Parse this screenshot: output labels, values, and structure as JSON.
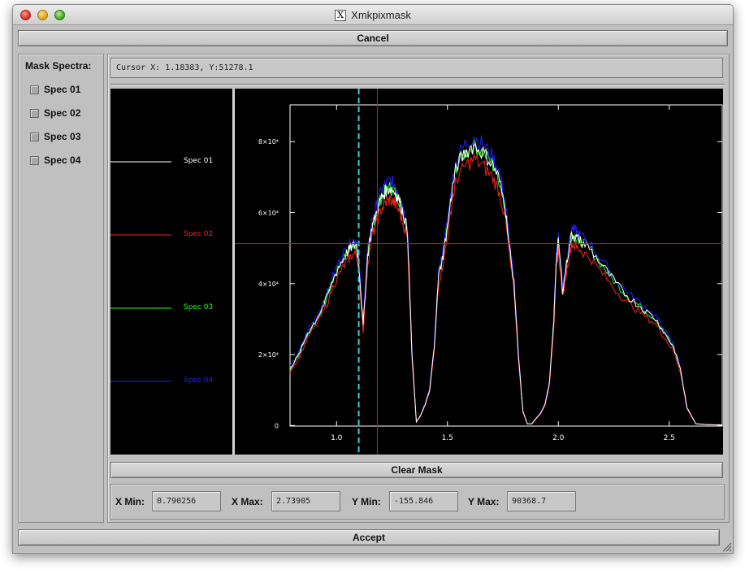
{
  "window": {
    "title": "Xmkpixmask"
  },
  "buttons": {
    "cancel": "Cancel",
    "clear_mask": "Clear Mask",
    "accept": "Accept"
  },
  "mask_panel": {
    "title": "Mask Spectra:",
    "items": [
      {
        "label": "Spec 01",
        "checked": false
      },
      {
        "label": "Spec 02",
        "checked": false
      },
      {
        "label": "Spec 03",
        "checked": false
      },
      {
        "label": "Spec 04",
        "checked": false
      }
    ]
  },
  "cursor": {
    "text": "Cursor X: 1.18383, Y:51278.1"
  },
  "limits": {
    "xmin_label": "X Min:",
    "xmin": "0.790256",
    "xmax_label": "X Max:",
    "xmax": "2.73905",
    "ymin_label": "Y Min:",
    "ymin": "-155.846",
    "ymax_label": "Y Max:",
    "ymax": "90368.7"
  },
  "colors": {
    "spec01": "#ffffff",
    "spec02": "#ff2020",
    "spec03": "#20ff20",
    "spec04": "#2020ff",
    "mask_line": "#33d4d4",
    "cursor_line": "#dd1010"
  },
  "legend": [
    "Spec 01",
    "Spec 02",
    "Spec 03",
    "Spec 04"
  ],
  "chart_data": {
    "type": "line",
    "xlim": [
      0.790256,
      2.73905
    ],
    "ylim": [
      -155.846,
      90368.7
    ],
    "xticks": [
      {
        "value": 1.0,
        "label": "1.0"
      },
      {
        "value": 1.5,
        "label": "1.5"
      },
      {
        "value": 2.0,
        "label": "2.0"
      },
      {
        "value": 2.5,
        "label": "2.5"
      }
    ],
    "yticks": [
      {
        "value": 0,
        "label": "0"
      },
      {
        "value": 20000,
        "label": "2×10⁴"
      },
      {
        "value": 40000,
        "label": "4×10⁴"
      },
      {
        "value": 60000,
        "label": "6×10⁴"
      },
      {
        "value": 80000,
        "label": "8×10⁴"
      }
    ],
    "cursor": {
      "x": 1.18383,
      "y": 51278.1
    },
    "mask_x": 1.1,
    "series": [
      {
        "name": "Spec 01",
        "color": "#ffffff",
        "scale": 0.93,
        "x": [
          0.79,
          0.83,
          0.87,
          0.91,
          0.95,
          0.99,
          1.02,
          1.05,
          1.07,
          1.09,
          1.1,
          1.12,
          1.14,
          1.16,
          1.18,
          1.2,
          1.22,
          1.24,
          1.26,
          1.28,
          1.3,
          1.32,
          1.34,
          1.36,
          1.38,
          1.4,
          1.42,
          1.44,
          1.46,
          1.48,
          1.5,
          1.52,
          1.54,
          1.58,
          1.62,
          1.66,
          1.7,
          1.73,
          1.76,
          1.78,
          1.8,
          1.82,
          1.84,
          1.86,
          1.88,
          1.9,
          1.92,
          1.94,
          1.96,
          1.98,
          1.99,
          2.0,
          2.02,
          2.04,
          2.06,
          2.08,
          2.1,
          2.14,
          2.2,
          2.26,
          2.32,
          2.38,
          2.44,
          2.48,
          2.52,
          2.55,
          2.58,
          2.62,
          2.66,
          2.7,
          2.739
        ],
        "y": [
          16000,
          20000,
          26000,
          30000,
          35000,
          42000,
          46000,
          49000,
          50500,
          51000,
          46000,
          28000,
          48000,
          56000,
          60000,
          64000,
          66000,
          67000,
          66000,
          64000,
          60000,
          55000,
          20000,
          1000,
          3000,
          6000,
          10000,
          22000,
          42000,
          48000,
          56000,
          66000,
          73000,
          77000,
          79000,
          77000,
          74000,
          70000,
          62000,
          50000,
          40000,
          20000,
          4000,
          500,
          500,
          2000,
          3500,
          6000,
          12000,
          30000,
          46000,
          52000,
          38000,
          47000,
          54000,
          53000,
          52000,
          50000,
          45000,
          40000,
          36000,
          33000,
          30000,
          26000,
          22000,
          16000,
          5000,
          500,
          300,
          200,
          200
        ]
      },
      {
        "name": "Spec 02",
        "color": "#ff2020",
        "scale": 0.95,
        "x": null,
        "y": null
      },
      {
        "name": "Spec 03",
        "color": "#20ff20",
        "scale": 1.0,
        "x": null,
        "y": null
      },
      {
        "name": "Spec 04",
        "color": "#2020ff",
        "scale": 1.03,
        "x": null,
        "y": null
      }
    ]
  }
}
